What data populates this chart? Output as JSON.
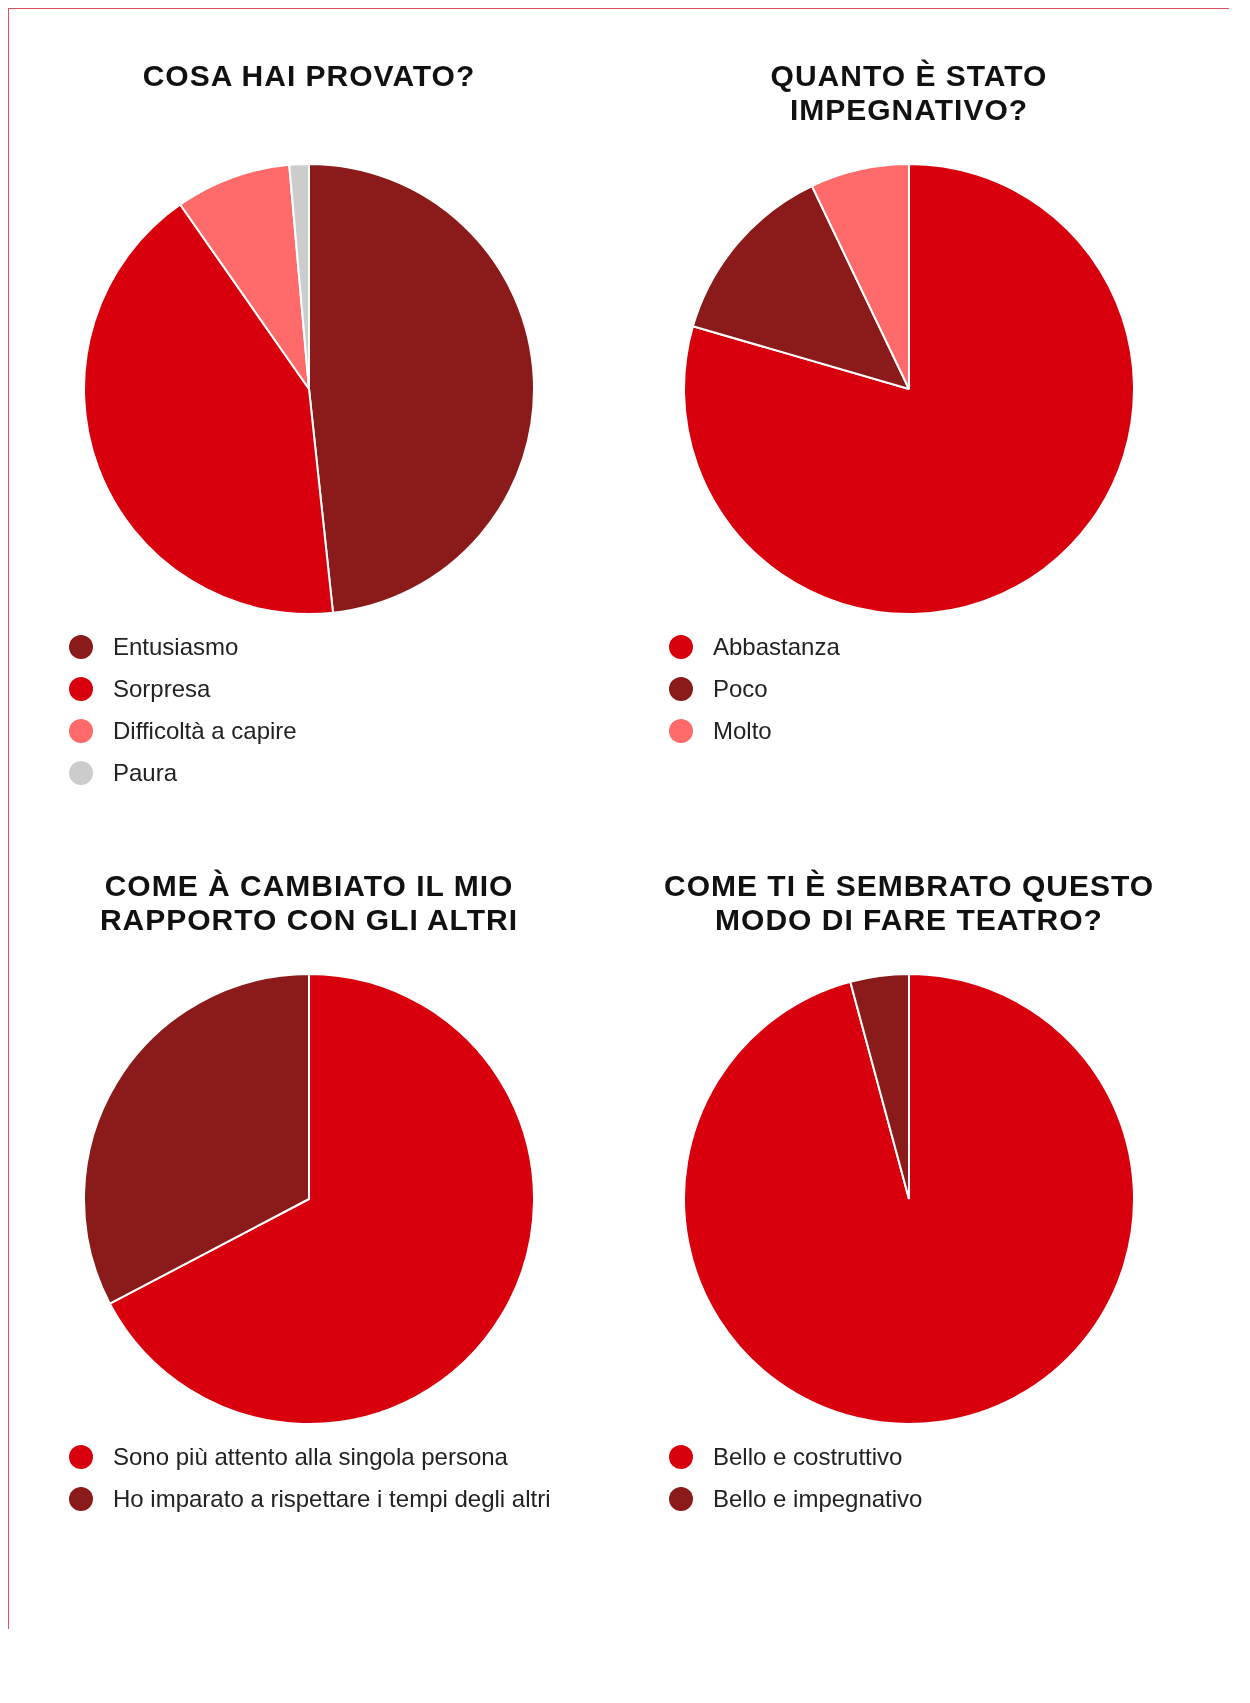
{
  "chart_data": [
    {
      "type": "pie",
      "title": "COSA HAI PROVATO?",
      "categories": [
        "Entusiasmo",
        "Sorpresa",
        "Difficoltà a capire",
        "Paura"
      ],
      "values": [
        48.3,
        42,
        8.3,
        1.4
      ],
      "colors": [
        "#8b1a1a",
        "#d9000d",
        "#ff6b6b",
        "#cccccc"
      ],
      "legend": "bottom"
    },
    {
      "type": "pie",
      "title": "QUANTO È STATO IMPEGNATIVO?",
      "categories": [
        "Abbastanza",
        "Poco",
        "Molto"
      ],
      "values": [
        79.5,
        13.4,
        7.1
      ],
      "colors": [
        "#d9000d",
        "#8b1a1a",
        "#ff6b6b"
      ],
      "legend": "bottom"
    },
    {
      "type": "pie",
      "title": "COME À CAMBIATO IL MIO RAPPORTO CON GLI ALTRI",
      "categories": [
        "Sono più attento alla singola persona",
        "Ho imparato a rispettare i tempi degli altri"
      ],
      "values": [
        67.3,
        32.7
      ],
      "colors": [
        "#d9000d",
        "#8b1a1a"
      ],
      "legend": "bottom"
    },
    {
      "type": "pie",
      "title": "COME TI È SEMBRATO QUESTO MODO DI FARE TEATRO?",
      "categories": [
        "Bello e costruttivo",
        "Bello e impegnativo"
      ],
      "values": [
        95.8,
        4.2
      ],
      "colors": [
        "#d9000d",
        "#8b1a1a"
      ],
      "legend": "bottom"
    }
  ]
}
